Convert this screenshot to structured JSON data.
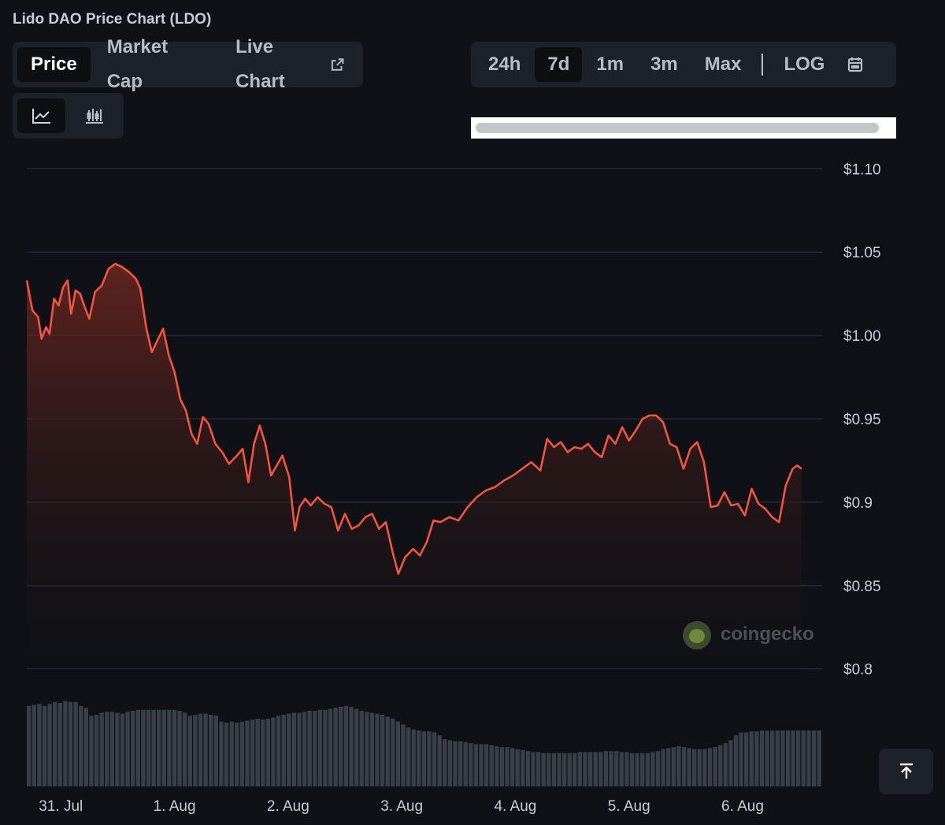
{
  "title": "Lido DAO Price Chart (LDO)",
  "tabs": [
    {
      "label": "Price",
      "active": true
    },
    {
      "label": "Market Cap",
      "active": false
    },
    {
      "label": "Live Chart",
      "active": false
    }
  ],
  "ranges": {
    "items": [
      {
        "label": "24h",
        "active": false
      },
      {
        "label": "7d",
        "active": true
      },
      {
        "label": "1m",
        "active": false
      },
      {
        "label": "3m",
        "active": false
      },
      {
        "label": "Max",
        "active": false
      }
    ],
    "log_label": "LOG"
  },
  "chart_type_buttons": [
    {
      "icon": "line-chart-icon",
      "active": true
    },
    {
      "icon": "candlestick-chart-icon",
      "active": false
    }
  ],
  "watermark": "coingecko",
  "colors": {
    "line": "#f0553f",
    "area_top": "#7a2a22",
    "grid": "#2a2e36",
    "volume": "#3a3e46",
    "background": "#0f1116"
  },
  "chart_data": {
    "type": "area",
    "title": "",
    "xlabel": "",
    "ylabel": "",
    "ylim": [
      0.78,
      1.12
    ],
    "yticks": [
      1.1,
      1.05,
      1.0,
      0.95,
      0.9,
      0.85,
      0.8
    ],
    "ytick_labels": [
      "$1.10",
      "$1.05",
      "$1.00",
      "$0.95",
      "$0.9",
      "$0.85",
      "$0.8"
    ],
    "xticks": [
      {
        "label": "31. Jul",
        "t": 0.3
      },
      {
        "label": "1. Aug",
        "t": 1.3
      },
      {
        "label": "2. Aug",
        "t": 2.3
      },
      {
        "label": "3. Aug",
        "t": 3.3
      },
      {
        "label": "4. Aug",
        "t": 4.3
      },
      {
        "label": "5. Aug",
        "t": 5.3
      },
      {
        "label": "6. Aug",
        "t": 6.3
      }
    ],
    "x_range": [
      0,
      7.0
    ],
    "grid": true,
    "series": [
      {
        "values": [
          [
            0.0,
            1.033
          ],
          [
            0.05,
            1.015
          ],
          [
            0.1,
            1.011
          ],
          [
            0.13,
            0.998
          ],
          [
            0.17,
            1.005
          ],
          [
            0.2,
            1.001
          ],
          [
            0.24,
            1.022
          ],
          [
            0.28,
            1.018
          ],
          [
            0.32,
            1.029
          ],
          [
            0.36,
            1.033
          ],
          [
            0.39,
            1.013
          ],
          [
            0.43,
            1.027
          ],
          [
            0.47,
            1.025
          ],
          [
            0.51,
            1.017
          ],
          [
            0.55,
            1.01
          ],
          [
            0.6,
            1.026
          ],
          [
            0.66,
            1.03
          ],
          [
            0.72,
            1.04
          ],
          [
            0.78,
            1.043
          ],
          [
            0.84,
            1.041
          ],
          [
            0.9,
            1.038
          ],
          [
            0.96,
            1.034
          ],
          [
            1.0,
            1.028
          ],
          [
            1.05,
            1.005
          ],
          [
            1.1,
            0.99
          ],
          [
            1.15,
            0.997
          ],
          [
            1.2,
            1.004
          ],
          [
            1.25,
            0.988
          ],
          [
            1.3,
            0.978
          ],
          [
            1.35,
            0.962
          ],
          [
            1.4,
            0.955
          ],
          [
            1.45,
            0.941
          ],
          [
            1.5,
            0.935
          ],
          [
            1.55,
            0.951
          ],
          [
            1.6,
            0.947
          ],
          [
            1.66,
            0.935
          ],
          [
            1.72,
            0.93
          ],
          [
            1.78,
            0.923
          ],
          [
            1.85,
            0.928
          ],
          [
            1.9,
            0.932
          ],
          [
            1.95,
            0.912
          ],
          [
            2.0,
            0.935
          ],
          [
            2.05,
            0.946
          ],
          [
            2.1,
            0.935
          ],
          [
            2.15,
            0.916
          ],
          [
            2.2,
            0.922
          ],
          [
            2.25,
            0.928
          ],
          [
            2.31,
            0.915
          ],
          [
            2.36,
            0.883
          ],
          [
            2.4,
            0.897
          ],
          [
            2.45,
            0.902
          ],
          [
            2.5,
            0.898
          ],
          [
            2.56,
            0.903
          ],
          [
            2.62,
            0.899
          ],
          [
            2.68,
            0.897
          ],
          [
            2.74,
            0.883
          ],
          [
            2.8,
            0.893
          ],
          [
            2.86,
            0.884
          ],
          [
            2.92,
            0.886
          ],
          [
            2.98,
            0.891
          ],
          [
            3.04,
            0.893
          ],
          [
            3.1,
            0.884
          ],
          [
            3.16,
            0.888
          ],
          [
            3.22,
            0.87
          ],
          [
            3.27,
            0.857
          ],
          [
            3.33,
            0.867
          ],
          [
            3.4,
            0.872
          ],
          [
            3.46,
            0.868
          ],
          [
            3.52,
            0.876
          ],
          [
            3.58,
            0.889
          ],
          [
            3.64,
            0.888
          ],
          [
            3.72,
            0.891
          ],
          [
            3.8,
            0.889
          ],
          [
            3.88,
            0.897
          ],
          [
            3.96,
            0.903
          ],
          [
            4.04,
            0.907
          ],
          [
            4.12,
            0.909
          ],
          [
            4.2,
            0.913
          ],
          [
            4.28,
            0.916
          ],
          [
            4.36,
            0.92
          ],
          [
            4.44,
            0.924
          ],
          [
            4.52,
            0.919
          ],
          [
            4.58,
            0.938
          ],
          [
            4.64,
            0.933
          ],
          [
            4.7,
            0.936
          ],
          [
            4.76,
            0.93
          ],
          [
            4.82,
            0.933
          ],
          [
            4.88,
            0.932
          ],
          [
            4.94,
            0.935
          ],
          [
            5.0,
            0.93
          ],
          [
            5.06,
            0.927
          ],
          [
            5.12,
            0.94
          ],
          [
            5.18,
            0.935
          ],
          [
            5.24,
            0.945
          ],
          [
            5.3,
            0.937
          ],
          [
            5.36,
            0.943
          ],
          [
            5.42,
            0.95
          ],
          [
            5.48,
            0.952
          ],
          [
            5.54,
            0.952
          ],
          [
            5.6,
            0.948
          ],
          [
            5.66,
            0.935
          ],
          [
            5.72,
            0.933
          ],
          [
            5.78,
            0.92
          ],
          [
            5.84,
            0.932
          ],
          [
            5.9,
            0.936
          ],
          [
            5.96,
            0.924
          ],
          [
            6.02,
            0.897
          ],
          [
            6.08,
            0.898
          ],
          [
            6.14,
            0.906
          ],
          [
            6.2,
            0.898
          ],
          [
            6.26,
            0.899
          ],
          [
            6.32,
            0.892
          ],
          [
            6.38,
            0.908
          ],
          [
            6.44,
            0.899
          ],
          [
            6.5,
            0.896
          ],
          [
            6.56,
            0.891
          ],
          [
            6.62,
            0.888
          ],
          [
            6.68,
            0.91
          ],
          [
            6.74,
            0.92
          ],
          [
            6.78,
            0.922
          ],
          [
            6.82,
            0.92
          ]
        ]
      }
    ],
    "volume": [
      0.82,
      0.83,
      0.84,
      0.82,
      0.84,
      0.86,
      0.85,
      0.87,
      0.86,
      0.86,
      0.82,
      0.8,
      0.72,
      0.73,
      0.75,
      0.76,
      0.76,
      0.75,
      0.74,
      0.76,
      0.77,
      0.78,
      0.78,
      0.78,
      0.78,
      0.78,
      0.78,
      0.78,
      0.78,
      0.77,
      0.75,
      0.72,
      0.73,
      0.74,
      0.74,
      0.73,
      0.72,
      0.66,
      0.65,
      0.66,
      0.65,
      0.66,
      0.67,
      0.68,
      0.69,
      0.68,
      0.69,
      0.7,
      0.72,
      0.73,
      0.74,
      0.75,
      0.75,
      0.76,
      0.77,
      0.77,
      0.78,
      0.78,
      0.79,
      0.8,
      0.81,
      0.82,
      0.81,
      0.79,
      0.77,
      0.76,
      0.75,
      0.74,
      0.73,
      0.71,
      0.69,
      0.66,
      0.63,
      0.6,
      0.58,
      0.57,
      0.56,
      0.56,
      0.55,
      0.52,
      0.48,
      0.47,
      0.46,
      0.46,
      0.45,
      0.44,
      0.43,
      0.43,
      0.43,
      0.42,
      0.41,
      0.4,
      0.4,
      0.39,
      0.38,
      0.37,
      0.36,
      0.35,
      0.35,
      0.34,
      0.34,
      0.34,
      0.34,
      0.34,
      0.34,
      0.34,
      0.35,
      0.35,
      0.35,
      0.35,
      0.35,
      0.36,
      0.36,
      0.36,
      0.35,
      0.35,
      0.34,
      0.34,
      0.34,
      0.34,
      0.35,
      0.36,
      0.38,
      0.39,
      0.4,
      0.41,
      0.4,
      0.39,
      0.38,
      0.38,
      0.38,
      0.39,
      0.4,
      0.42,
      0.44,
      0.47,
      0.52,
      0.55,
      0.55,
      0.56,
      0.56,
      0.57,
      0.57,
      0.57,
      0.57,
      0.57,
      0.57,
      0.57,
      0.57,
      0.57,
      0.57,
      0.57,
      0.57
    ]
  }
}
